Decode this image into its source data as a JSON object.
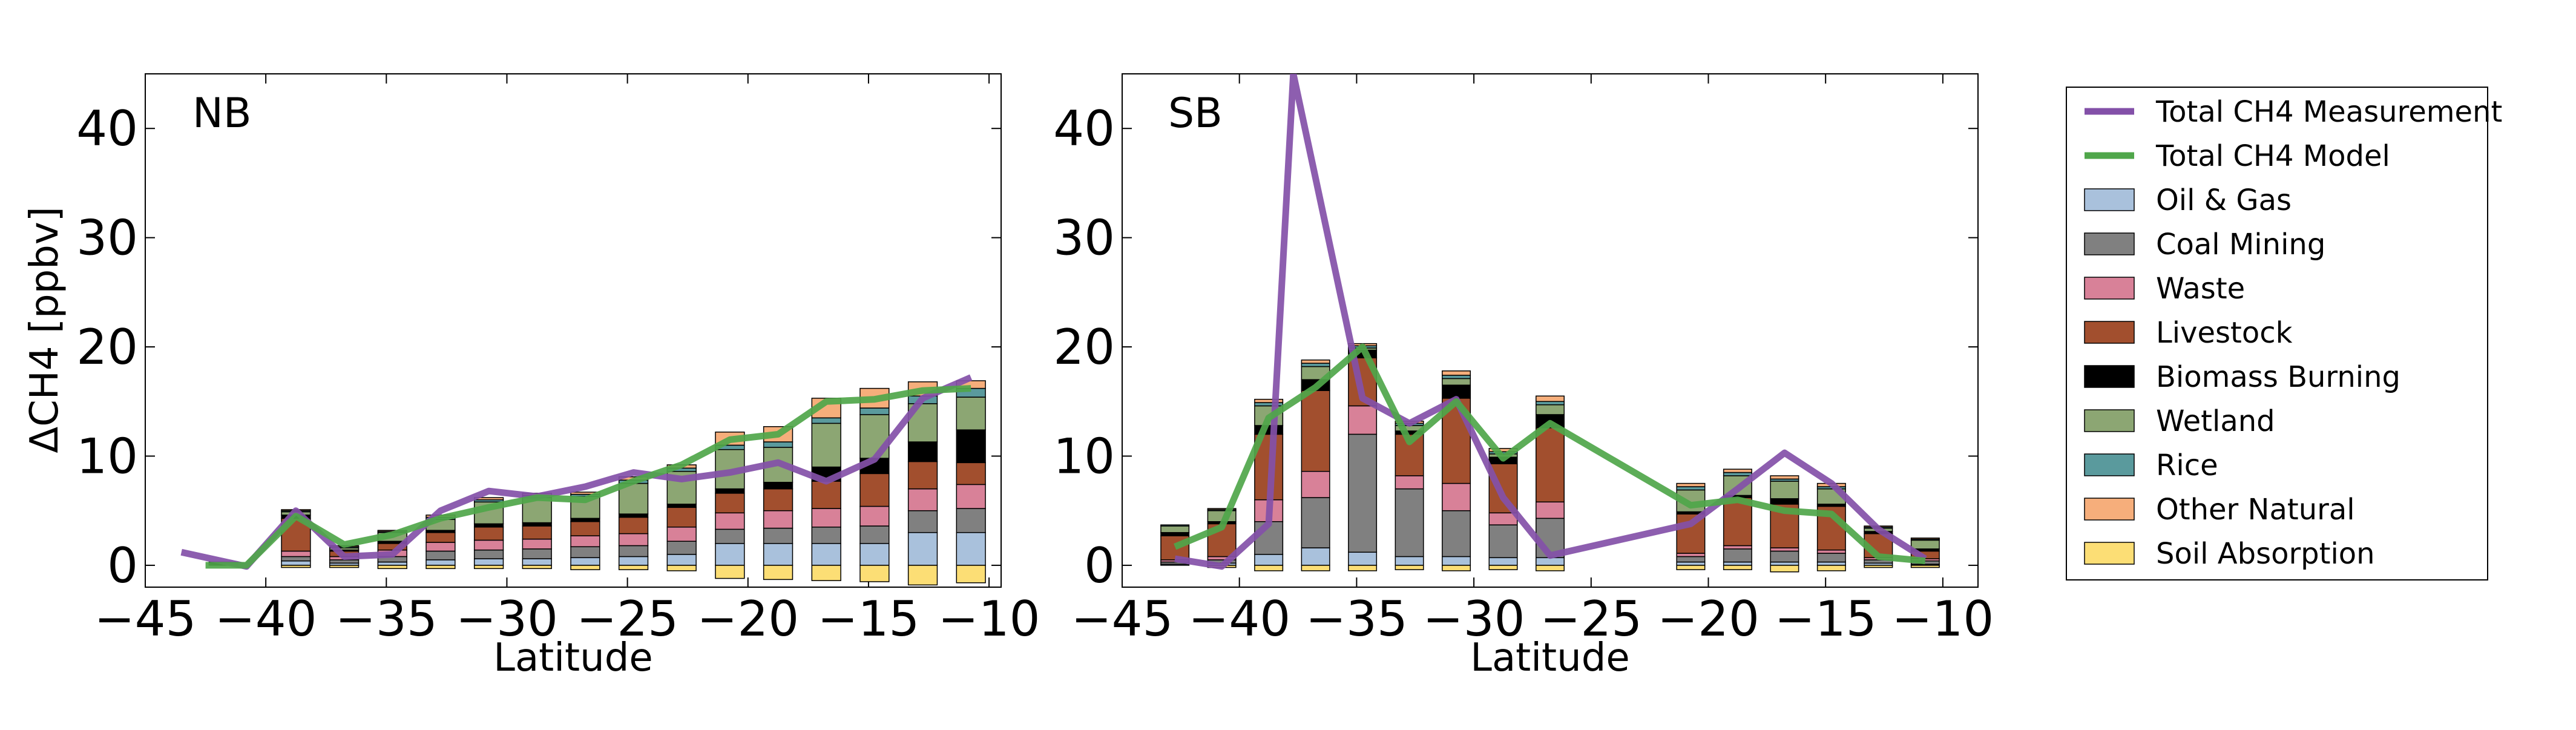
{
  "figure": {
    "ylabel": "ΔCH4 [ppbv]",
    "xlabel": "Latitude"
  },
  "legend": {
    "placement": "right",
    "entries": [
      {
        "kind": "line",
        "label": "Total CH4 Measurement",
        "color": "#8350A8"
      },
      {
        "kind": "line",
        "label": "Total CH4 Model",
        "color": "#4FA64A"
      },
      {
        "kind": "patch",
        "label": "Oil & Gas",
        "color": "#A9C1DC"
      },
      {
        "kind": "patch",
        "label": "Coal Mining",
        "color": "#808080"
      },
      {
        "kind": "patch",
        "label": "Waste",
        "color": "#D88198"
      },
      {
        "kind": "patch",
        "label": "Livestock",
        "color": "#A24F2E"
      },
      {
        "kind": "patch",
        "label": "Biomass Burning",
        "color": "#000000"
      },
      {
        "kind": "patch",
        "label": "Wetland",
        "color": "#8CA673"
      },
      {
        "kind": "patch",
        "label": "Rice",
        "color": "#5A9A9D"
      },
      {
        "kind": "patch",
        "label": "Other Natural",
        "color": "#F6AE7B"
      },
      {
        "kind": "patch",
        "label": "Soil Absorption",
        "color": "#FCDE75"
      }
    ]
  },
  "chart_data": [
    {
      "type": "bar",
      "stacked": true,
      "panel_label": "NB",
      "xlabel": "Latitude",
      "ylabel": "ΔCH4 [ppbv]",
      "xlim": [
        -45,
        -9.5
      ],
      "ylim": [
        -2,
        45
      ],
      "xticks": [
        -45,
        -40,
        -35,
        -30,
        -25,
        -20,
        -15,
        -10
      ],
      "yticks": [
        0,
        10,
        20,
        30,
        40
      ],
      "grid": false,
      "bar_width": 1.2,
      "categories": [
        -41.75,
        -38.75,
        -36.75,
        -34.75,
        -32.75,
        -30.75,
        -28.75,
        -26.75,
        -24.75,
        -22.75,
        -20.75,
        -18.75,
        -16.75,
        -14.75,
        -12.75,
        -10.75
      ],
      "series": [
        {
          "name": "Oil & Gas",
          "values": [
            0.05,
            0.4,
            0.2,
            0.3,
            0.5,
            0.6,
            0.6,
            0.7,
            0.8,
            1.0,
            2.0,
            2.0,
            2.0,
            2.0,
            3.0,
            3.0
          ]
        },
        {
          "name": "Coal Mining",
          "values": [
            0.05,
            0.4,
            0.3,
            0.5,
            0.8,
            0.8,
            0.9,
            1.0,
            1.0,
            1.2,
            1.3,
            1.4,
            1.5,
            1.6,
            2.0,
            2.2
          ]
        },
        {
          "name": "Waste",
          "values": [
            0.05,
            0.5,
            0.3,
            0.6,
            0.8,
            0.9,
            0.9,
            1.0,
            1.1,
            1.3,
            1.5,
            1.6,
            1.7,
            1.8,
            2.0,
            2.2
          ]
        },
        {
          "name": "Livestock",
          "values": [
            0.05,
            3.0,
            0.5,
            0.6,
            0.9,
            1.2,
            1.2,
            1.3,
            1.5,
            1.8,
            1.8,
            2.0,
            2.5,
            3.0,
            2.5,
            2.0
          ]
        },
        {
          "name": "Biomass Burning",
          "values": [
            0.05,
            0.3,
            0.1,
            0.2,
            0.2,
            0.3,
            0.3,
            0.3,
            0.3,
            0.3,
            0.4,
            0.6,
            1.3,
            1.4,
            1.8,
            3.0
          ]
        },
        {
          "name": "Wetland",
          "values": [
            0.05,
            0.3,
            0.2,
            0.8,
            1.0,
            2.0,
            2.3,
            2.0,
            2.8,
            3.0,
            3.6,
            3.2,
            4.0,
            4.0,
            3.5,
            3.0
          ]
        },
        {
          "name": "Rice",
          "values": [
            0.0,
            0.1,
            0.1,
            0.1,
            0.2,
            0.2,
            0.2,
            0.2,
            0.3,
            0.3,
            0.4,
            0.5,
            0.5,
            0.6,
            0.7,
            0.8
          ]
        },
        {
          "name": "Other Natural",
          "values": [
            0.0,
            0.1,
            0.1,
            0.1,
            0.2,
            0.2,
            0.2,
            0.2,
            0.3,
            0.3,
            1.2,
            1.4,
            1.8,
            1.8,
            1.3,
            0.7
          ]
        },
        {
          "name": "Soil Absorption",
          "values": [
            0.0,
            -0.2,
            -0.2,
            -0.3,
            -0.3,
            -0.3,
            -0.3,
            -0.4,
            -0.4,
            -0.5,
            -1.2,
            -1.3,
            -1.4,
            -1.5,
            -1.8,
            -1.6
          ]
        }
      ],
      "lines": [
        {
          "name": "Total CH4 Measurement",
          "x": [
            -43.5,
            -40.8,
            -38.75,
            -36.75,
            -34.75,
            -32.75,
            -30.75,
            -28.75,
            -26.75,
            -24.75,
            -22.75,
            -20.75,
            -18.75,
            -16.75,
            -14.75,
            -12.75,
            -10.75
          ],
          "y": [
            1.2,
            -0.1,
            5.0,
            0.8,
            1.0,
            5.0,
            6.8,
            6.3,
            7.2,
            8.5,
            7.9,
            8.5,
            9.4,
            7.7,
            9.7,
            15.3,
            17.2
          ]
        },
        {
          "name": "Total CH4 Model",
          "x": [
            -42.5,
            -40.8,
            -38.75,
            -36.75,
            -34.75,
            -32.75,
            -30.75,
            -28.75,
            -26.75,
            -24.75,
            -22.75,
            -20.75,
            -18.75,
            -16.75,
            -14.75,
            -12.75,
            -10.75
          ],
          "y": [
            0.0,
            0.0,
            4.5,
            1.9,
            2.8,
            4.3,
            5.3,
            6.2,
            6.0,
            7.7,
            9.2,
            11.5,
            12.0,
            15.0,
            15.2,
            16.0,
            16.2
          ]
        }
      ]
    },
    {
      "type": "bar",
      "stacked": true,
      "panel_label": "SB",
      "xlabel": "Latitude",
      "ylabel": "",
      "xlim": [
        -45,
        -8.5
      ],
      "ylim": [
        -2,
        45
      ],
      "xticks": [
        -45,
        -40,
        -35,
        -30,
        -25,
        -20,
        -15,
        -10
      ],
      "yticks": [
        0,
        10,
        20,
        30,
        40
      ],
      "grid": false,
      "bar_width": 1.2,
      "categories": [
        -42.75,
        -40.75,
        -38.75,
        -36.75,
        -34.75,
        -32.75,
        -30.75,
        -28.75,
        -26.75,
        -20.75,
        -18.75,
        -16.75,
        -14.75,
        -12.75,
        -10.75
      ],
      "series": [
        {
          "name": "Oil & Gas",
          "values": [
            0.1,
            0.2,
            1.0,
            1.6,
            1.2,
            0.8,
            0.8,
            0.7,
            0.7,
            0.3,
            0.3,
            0.3,
            0.3,
            0.2,
            0.1
          ]
        },
        {
          "name": "Coal Mining",
          "values": [
            0.2,
            0.3,
            3.0,
            4.6,
            10.8,
            6.2,
            4.2,
            3.0,
            3.6,
            0.5,
            1.2,
            1.0,
            0.8,
            0.3,
            0.3
          ]
        },
        {
          "name": "Waste",
          "values": [
            0.2,
            0.3,
            2.0,
            2.4,
            2.6,
            1.2,
            2.5,
            1.1,
            1.5,
            0.3,
            0.3,
            0.3,
            0.3,
            0.2,
            0.2
          ]
        },
        {
          "name": "Livestock",
          "values": [
            2.2,
            3.0,
            6.0,
            7.4,
            4.4,
            3.8,
            7.8,
            4.5,
            6.8,
            3.6,
            4.4,
            4.0,
            4.0,
            2.2,
            0.7
          ]
        },
        {
          "name": "Biomass Burning",
          "values": [
            0.3,
            0.2,
            0.8,
            1.0,
            0.7,
            0.3,
            1.2,
            0.6,
            1.2,
            0.2,
            0.2,
            0.5,
            0.2,
            0.2,
            0.2
          ]
        },
        {
          "name": "Wetland",
          "values": [
            0.6,
            1.0,
            1.8,
            1.2,
            0.2,
            0.5,
            0.6,
            0.3,
            0.9,
            2.0,
            1.8,
            1.6,
            1.4,
            0.3,
            0.8
          ]
        },
        {
          "name": "Rice",
          "values": [
            0.1,
            0.1,
            0.3,
            0.3,
            0.2,
            0.2,
            0.3,
            0.2,
            0.3,
            0.3,
            0.3,
            0.2,
            0.2,
            0.1,
            0.1
          ]
        },
        {
          "name": "Other Natural",
          "values": [
            0.0,
            0.1,
            0.3,
            0.3,
            0.2,
            0.2,
            0.4,
            0.3,
            0.5,
            0.3,
            0.3,
            0.3,
            0.3,
            0.1,
            0.1
          ]
        },
        {
          "name": "Soil Absorption",
          "values": [
            0.0,
            -0.2,
            -0.5,
            -0.5,
            -0.5,
            -0.4,
            -0.5,
            -0.4,
            -0.5,
            -0.4,
            -0.4,
            -0.6,
            -0.5,
            -0.2,
            -0.2
          ]
        }
      ],
      "lines": [
        {
          "name": "Total CH4 Measurement",
          "x": [
            -42.75,
            -40.75,
            -38.75,
            -37.7,
            -34.75,
            -32.75,
            -30.75,
            -28.75,
            -26.75,
            -20.75,
            -18.75,
            -16.75,
            -14.75,
            -12.75,
            -10.75
          ],
          "y": [
            0.6,
            -0.1,
            3.8,
            45,
            15.3,
            13.0,
            15.2,
            6.2,
            0.9,
            3.8,
            7.0,
            10.3,
            7.5,
            3.3,
            0.6
          ]
        },
        {
          "name": "Total CH4 Model",
          "x": [
            -42.75,
            -40.75,
            -38.75,
            -36.75,
            -34.75,
            -32.75,
            -30.75,
            -28.75,
            -26.75,
            -20.75,
            -18.75,
            -16.75,
            -14.75,
            -12.75,
            -10.75
          ],
          "y": [
            1.7,
            3.5,
            13.5,
            16.3,
            20.0,
            11.3,
            15.0,
            9.8,
            13.0,
            5.5,
            6.0,
            5.0,
            4.7,
            0.8,
            0.4
          ]
        }
      ]
    }
  ]
}
